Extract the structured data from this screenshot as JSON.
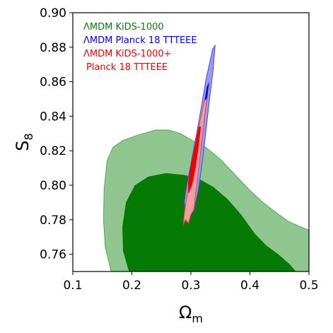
{
  "chart_data": {
    "type": "contour",
    "xlabel": "Ω",
    "xlabel_sub": "m",
    "ylabel": "S",
    "ylabel_sub": "8",
    "xlim": [
      0.1,
      0.5
    ],
    "ylim": [
      0.75,
      0.9
    ],
    "xticks": [
      0.1,
      0.2,
      0.3,
      0.4,
      0.5
    ],
    "yticks": [
      0.76,
      0.78,
      0.8,
      0.82,
      0.84,
      0.86,
      0.88,
      0.9
    ],
    "xtick_labels": [
      "0.1",
      "0.2",
      "0.3",
      "0.4",
      "0.5"
    ],
    "ytick_labels": [
      "0.76",
      "0.78",
      "0.80",
      "0.82",
      "0.84",
      "0.86",
      "0.88",
      "0.90"
    ],
    "grid": false,
    "legend_position": "top-left",
    "legend": [
      {
        "label": "ΛMDM KiDS-1000",
        "color": "#0a7a0a"
      },
      {
        "label": "ΛMDM Planck 18 TTTEEE",
        "color": "#0000ee"
      },
      {
        "label_lines": [
          "ΛMDM KiDS-1000+",
          "Planck 18 TTTEEE"
        ],
        "color": "#ee0000"
      }
    ],
    "series": [
      {
        "name": "ΛMDM KiDS-1000",
        "outer_color": "#8fc58f",
        "outer_edge": "#5aa55a",
        "inner_color": "#057a05",
        "outer_contour": [
          [
            0.165,
            0.75
          ],
          [
            0.155,
            0.764
          ],
          [
            0.152,
            0.78
          ],
          [
            0.153,
            0.798
          ],
          [
            0.158,
            0.814
          ],
          [
            0.168,
            0.822
          ],
          [
            0.185,
            0.826
          ],
          [
            0.21,
            0.829
          ],
          [
            0.24,
            0.832
          ],
          [
            0.262,
            0.832
          ],
          [
            0.282,
            0.83
          ],
          [
            0.302,
            0.826
          ],
          [
            0.325,
            0.822
          ],
          [
            0.35,
            0.815
          ],
          [
            0.375,
            0.806
          ],
          [
            0.4,
            0.797
          ],
          [
            0.422,
            0.79
          ],
          [
            0.445,
            0.784
          ],
          [
            0.465,
            0.779
          ],
          [
            0.485,
            0.776
          ],
          [
            0.5,
            0.774
          ],
          [
            0.5,
            0.75
          ]
        ],
        "inner_contour": [
          [
            0.195,
            0.75
          ],
          [
            0.185,
            0.762
          ],
          [
            0.184,
            0.776
          ],
          [
            0.19,
            0.79
          ],
          [
            0.205,
            0.8
          ],
          [
            0.228,
            0.805
          ],
          [
            0.258,
            0.807
          ],
          [
            0.288,
            0.806
          ],
          [
            0.312,
            0.804
          ],
          [
            0.338,
            0.799
          ],
          [
            0.362,
            0.792
          ],
          [
            0.385,
            0.783
          ],
          [
            0.408,
            0.772
          ],
          [
            0.428,
            0.765
          ],
          [
            0.448,
            0.76
          ],
          [
            0.468,
            0.754
          ],
          [
            0.478,
            0.75
          ]
        ]
      },
      {
        "name": "ΛMDM Planck 18 TTTEEE",
        "outer_color": "#9a9af5",
        "outer_edge": "#4444dd",
        "inner_color": "#0000ee",
        "outer_contour": [
          [
            0.29,
            0.786
          ],
          [
            0.297,
            0.782
          ],
          [
            0.305,
            0.785
          ],
          [
            0.313,
            0.798
          ],
          [
            0.321,
            0.818
          ],
          [
            0.33,
            0.845
          ],
          [
            0.338,
            0.868
          ],
          [
            0.341,
            0.881
          ],
          [
            0.337,
            0.879
          ],
          [
            0.326,
            0.862
          ],
          [
            0.314,
            0.838
          ],
          [
            0.302,
            0.816
          ],
          [
            0.293,
            0.8
          ],
          [
            0.289,
            0.791
          ]
        ],
        "inner_contour": [
          [
            0.3,
            0.795
          ],
          [
            0.307,
            0.8
          ],
          [
            0.315,
            0.815
          ],
          [
            0.322,
            0.835
          ],
          [
            0.328,
            0.852
          ],
          [
            0.331,
            0.86
          ],
          [
            0.327,
            0.857
          ],
          [
            0.32,
            0.842
          ],
          [
            0.311,
            0.823
          ],
          [
            0.303,
            0.808
          ],
          [
            0.298,
            0.8
          ]
        ]
      },
      {
        "name": "ΛMDM KiDS-1000+ Planck 18 TTTEEE",
        "outer_color": "#f0a0a0",
        "outer_edge": "#dd4444",
        "inner_color": "#ee0000",
        "outer_contour": [
          [
            0.287,
            0.777
          ],
          [
            0.291,
            0.78
          ],
          [
            0.296,
            0.778
          ],
          [
            0.3,
            0.783
          ],
          [
            0.305,
            0.786
          ],
          [
            0.31,
            0.8
          ],
          [
            0.316,
            0.818
          ],
          [
            0.322,
            0.836
          ],
          [
            0.327,
            0.85
          ],
          [
            0.323,
            0.849
          ],
          [
            0.316,
            0.838
          ],
          [
            0.308,
            0.822
          ],
          [
            0.3,
            0.806
          ],
          [
            0.293,
            0.793
          ],
          [
            0.289,
            0.784
          ]
        ],
        "inner_contour": [
          [
            0.296,
            0.795
          ],
          [
            0.302,
            0.8
          ],
          [
            0.308,
            0.81
          ],
          [
            0.313,
            0.822
          ],
          [
            0.317,
            0.834
          ],
          [
            0.313,
            0.834
          ],
          [
            0.306,
            0.822
          ],
          [
            0.299,
            0.81
          ],
          [
            0.295,
            0.801
          ]
        ]
      }
    ]
  }
}
